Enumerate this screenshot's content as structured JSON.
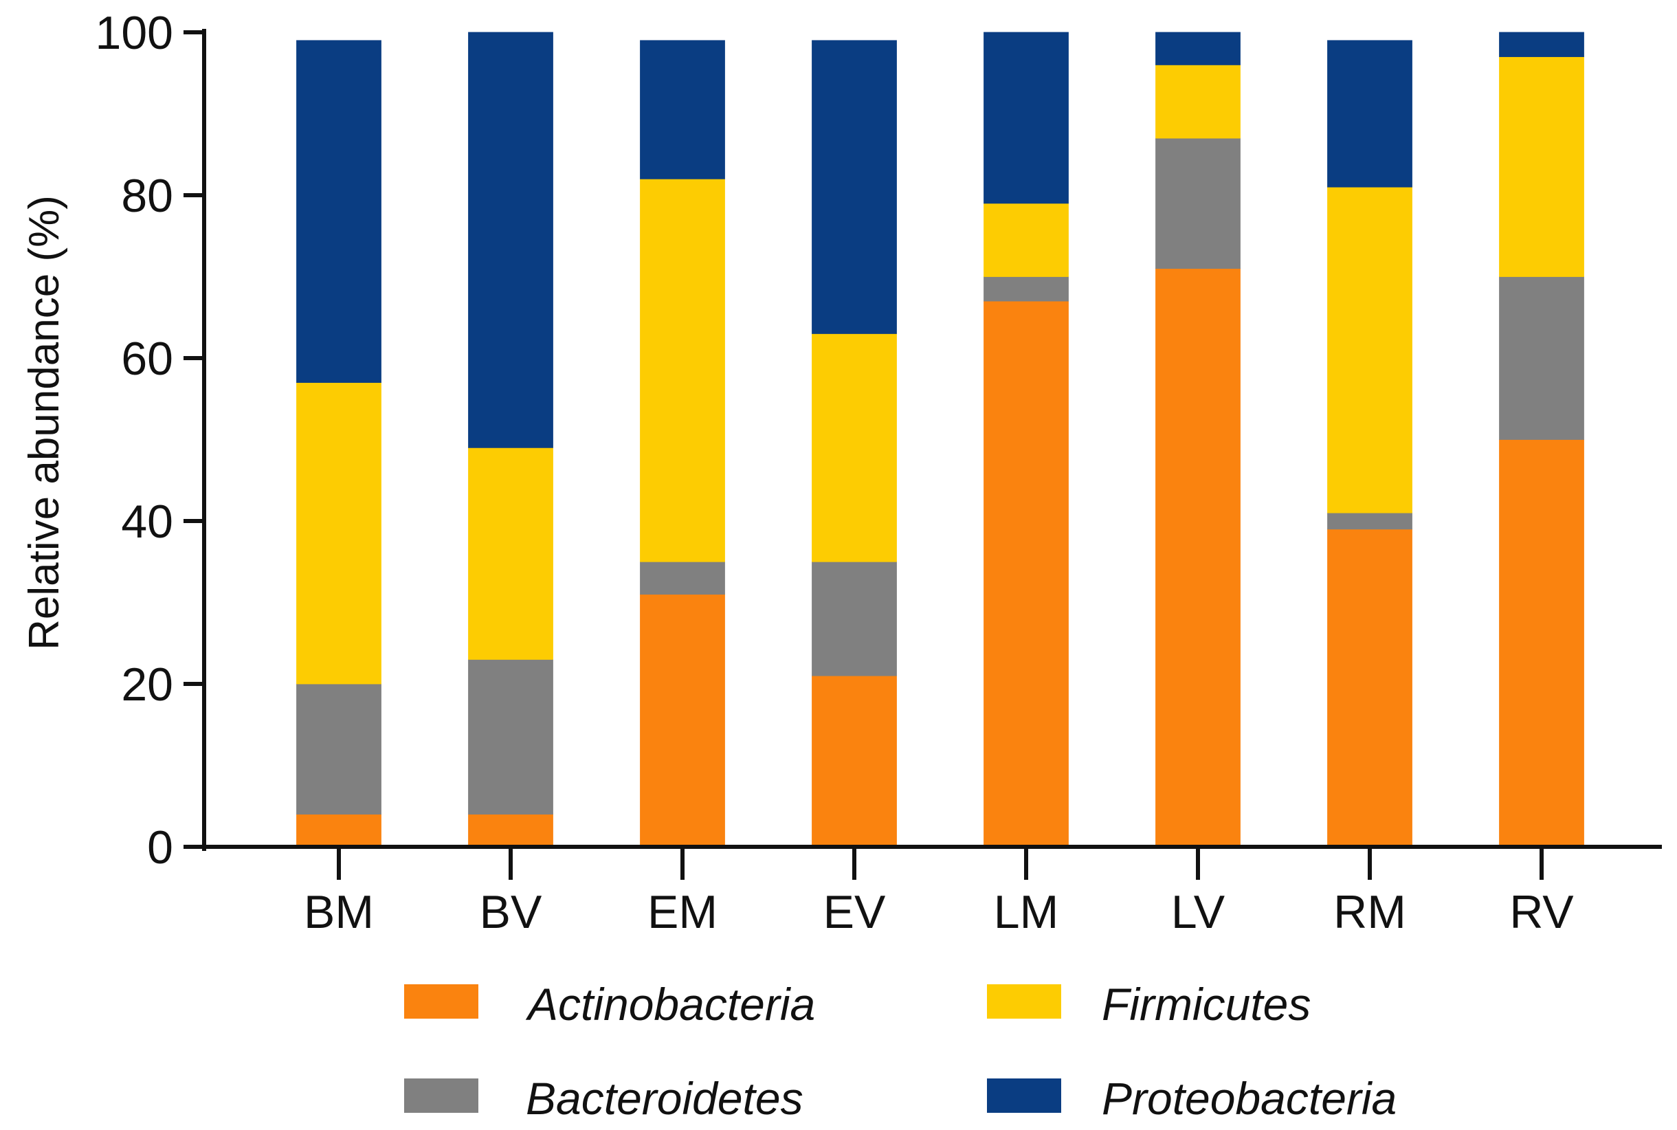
{
  "chart_data": {
    "type": "bar",
    "stacked": true,
    "title": "",
    "xlabel": "",
    "ylabel": "Relative abundance (%)",
    "ylim": [
      0,
      100
    ],
    "yticks": [
      0,
      20,
      40,
      60,
      80,
      100
    ],
    "ytick_labels": [
      "0",
      "20",
      "40",
      "60",
      "80",
      "100"
    ],
    "grid": false,
    "legend_position": "bottom",
    "categories": [
      "BM",
      "BV",
      "EM",
      "EV",
      "LM",
      "LV",
      "RM",
      "RV"
    ],
    "series": [
      {
        "name": "Actinobacteria",
        "color": "#fa830f",
        "values": [
          4,
          4,
          31,
          21,
          67,
          71,
          39,
          50
        ]
      },
      {
        "name": "Bacteroidetes",
        "color": "#808080",
        "values": [
          16,
          19,
          4,
          14,
          3,
          16,
          2,
          20
        ]
      },
      {
        "name": "Firmicutes",
        "color": "#fdcc02",
        "values": [
          37,
          26,
          47,
          28,
          9,
          9,
          40,
          27
        ]
      },
      {
        "name": "Proteobacteria",
        "color": "#0a3d82",
        "values": [
          42,
          51,
          17,
          36,
          21,
          4,
          18,
          3
        ]
      }
    ],
    "legend": [
      {
        "label": "Actinobacteria",
        "color": "#fa830f"
      },
      {
        "label": "Firmicutes",
        "color": "#fdcc02"
      },
      {
        "label": "Bacteroidetes",
        "color": "#808080"
      },
      {
        "label": "Proteobacteria",
        "color": "#0a3d82"
      }
    ]
  }
}
